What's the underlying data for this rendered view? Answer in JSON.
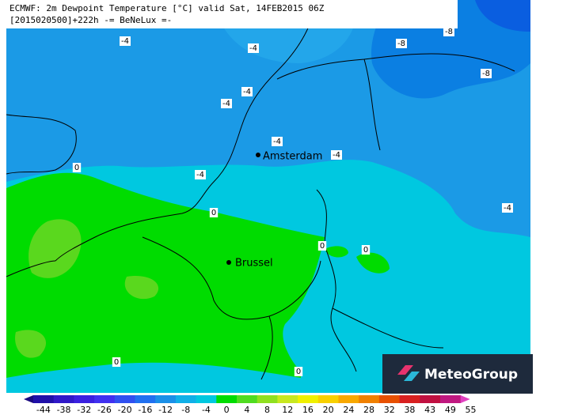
{
  "header": {
    "line1": "ECMWF: 2m Dewpoint Temperature [°C] valid Sat, 14FEB2015 06Z",
    "line2": "[2015020500]+222h -= BeNeLux =-"
  },
  "cities": [
    "Amsterdam",
    "Brussel"
  ],
  "contour_labels": [
    -4,
    -4,
    -8,
    -8,
    -8,
    -4,
    -4,
    -4,
    -4,
    -4,
    0,
    0,
    0,
    0,
    -4,
    0,
    0
  ],
  "colorbar": {
    "ticks": [
      -44,
      -38,
      -32,
      -26,
      -20,
      -16,
      -12,
      -8,
      -4,
      0,
      4,
      8,
      12,
      16,
      20,
      24,
      28,
      32,
      38,
      43,
      49,
      55
    ]
  },
  "logo": "MeteoGroup"
}
